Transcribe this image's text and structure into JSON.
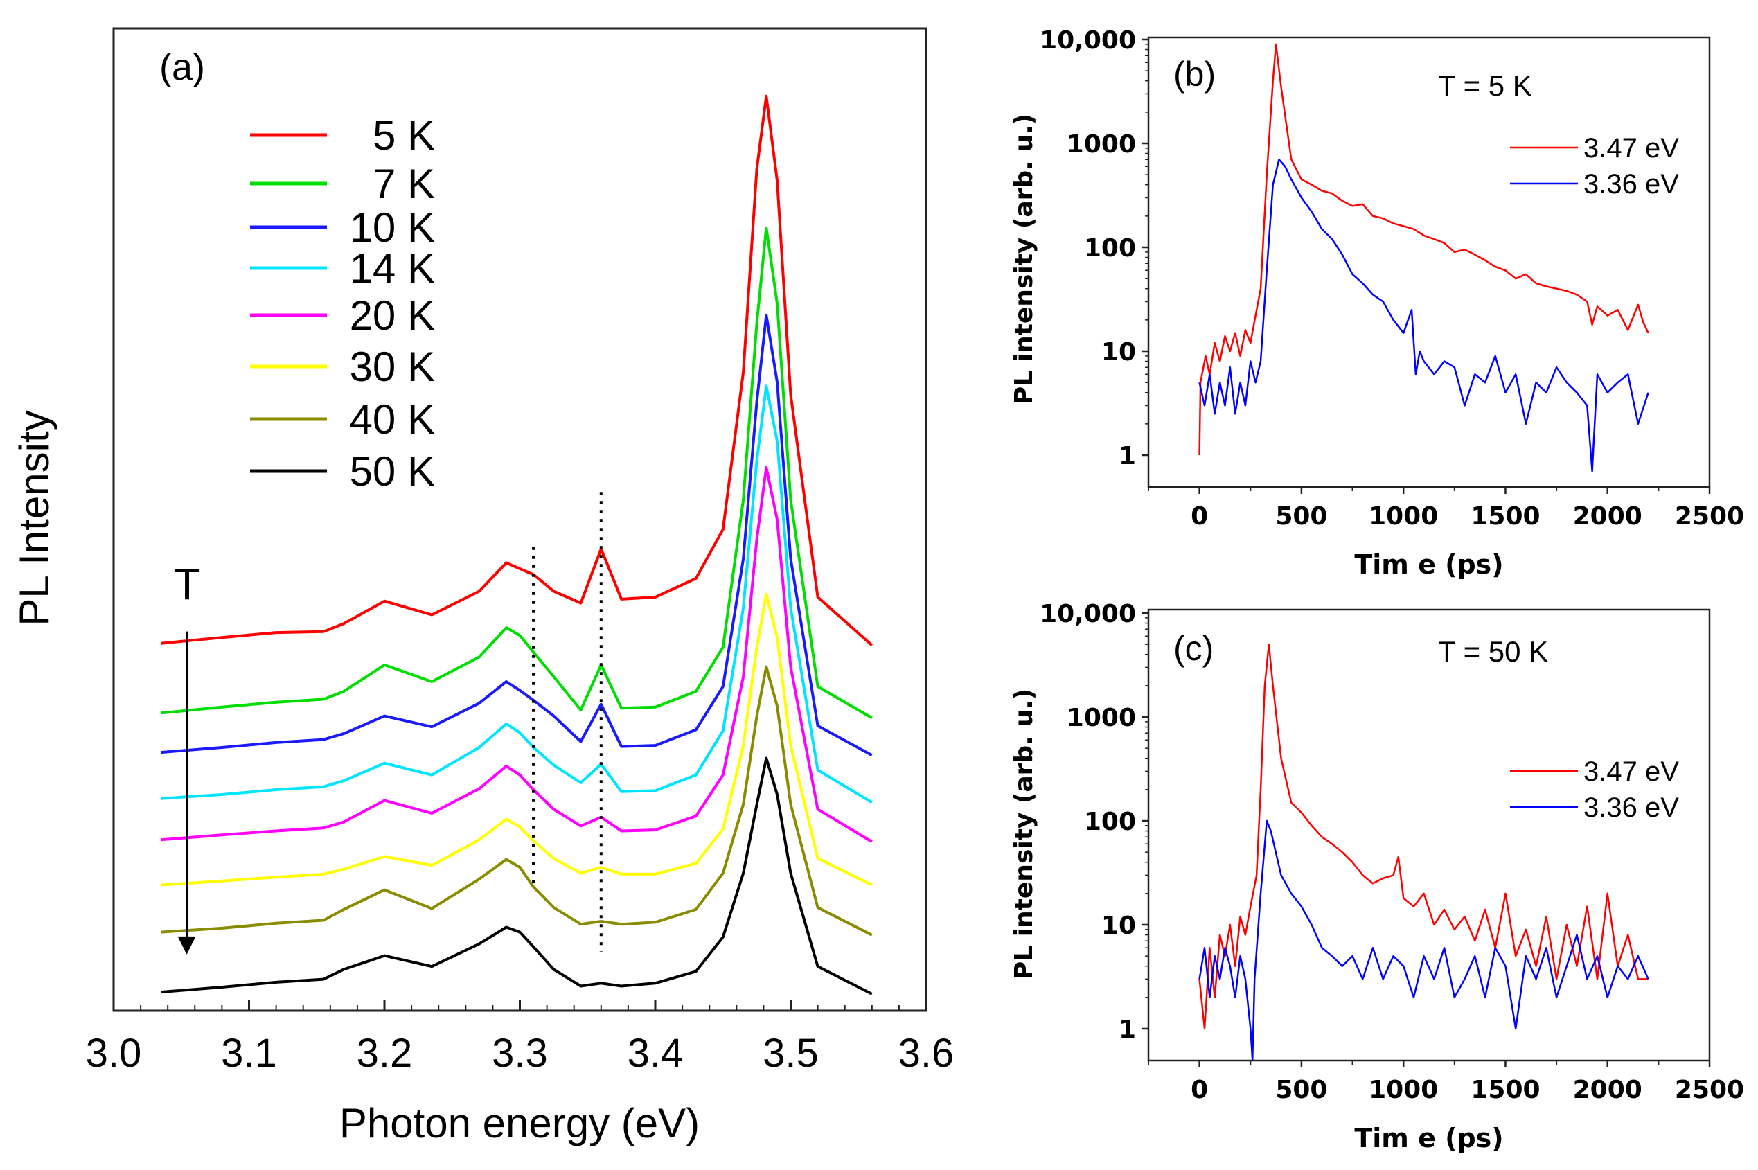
{
  "chart_data": [
    {
      "type": "line",
      "panel_label": "(a)",
      "xlabel": "Photon energy (eV)",
      "ylabel": "PL Intensity",
      "xlim": [
        3.0,
        3.6
      ],
      "ylim": [
        0,
        100
      ],
      "xticks": [
        "3.0",
        "3.1",
        "3.2",
        "3.3",
        "3.4",
        "3.5",
        "3.6"
      ],
      "y_ticks_shown": false,
      "grid": false,
      "legend_position": "top-left",
      "arrow_label": "T",
      "arrow": {
        "x": 3.054,
        "y_from": 38.6,
        "y_to": 6.0
      },
      "dotted_lines": [
        {
          "x": 3.31,
          "y_from": 47.2,
          "y_to": 12.8
        },
        {
          "x": 3.36,
          "y_from": 52.8,
          "y_to": 6.0
        }
      ],
      "x": [
        3.035,
        3.08,
        3.12,
        3.155,
        3.17,
        3.2,
        3.235,
        3.27,
        3.29,
        3.3,
        3.31,
        3.325,
        3.345,
        3.36,
        3.375,
        3.4,
        3.43,
        3.45,
        3.465,
        3.475,
        3.482,
        3.49,
        3.5,
        3.52,
        3.56
      ],
      "series": [
        {
          "name": "5 K",
          "color": "#ff0000",
          "values": [
            37.4,
            38.0,
            38.5,
            38.6,
            39.4,
            41.7,
            40.3,
            42.7,
            45.6,
            45.0,
            44.4,
            42.7,
            41.5,
            47.0,
            41.9,
            42.1,
            44.0,
            49.0,
            65.0,
            85.7,
            93.1,
            84.5,
            62.7,
            42.1,
            37.2
          ]
        },
        {
          "name": "7 K",
          "color": "#00dd00",
          "values": [
            30.3,
            30.9,
            31.4,
            31.7,
            32.5,
            35.2,
            33.5,
            36.0,
            39.0,
            38.2,
            36.5,
            34.0,
            30.6,
            35.2,
            30.8,
            30.9,
            32.5,
            37.0,
            52,
            70,
            79.7,
            72,
            52,
            33,
            29.8
          ]
        },
        {
          "name": "10 K",
          "color": "#1a1aff",
          "values": [
            26.3,
            26.8,
            27.3,
            27.6,
            28.2,
            30.0,
            28.9,
            31.3,
            33.5,
            32.6,
            31.6,
            30.0,
            27.4,
            31.2,
            26.9,
            27.0,
            28.6,
            33.0,
            46,
            62,
            70.8,
            64,
            46,
            29,
            26.0
          ]
        },
        {
          "name": "14 K",
          "color": "#00e5ff",
          "values": [
            21.6,
            22.0,
            22.5,
            22.8,
            23.4,
            25.2,
            24.0,
            26.8,
            29.2,
            28.3,
            26.8,
            25.0,
            23.2,
            25.1,
            22.3,
            22.4,
            24.0,
            28.5,
            41,
            56,
            63.6,
            58,
            41,
            24.5,
            21.2
          ]
        },
        {
          "name": "20 K",
          "color": "#ff00ff",
          "values": [
            17.4,
            17.9,
            18.3,
            18.6,
            19.2,
            21.4,
            20.1,
            22.6,
            24.9,
            24.0,
            22.5,
            20.5,
            18.8,
            19.7,
            18.3,
            18.4,
            19.8,
            24,
            34,
            48,
            55.3,
            50,
            35,
            20.5,
            17.2
          ]
        },
        {
          "name": "30 K",
          "color": "#ffff00",
          "values": [
            12.8,
            13.2,
            13.6,
            13.9,
            14.4,
            15.7,
            14.8,
            17.4,
            19.5,
            18.7,
            17.3,
            15.5,
            14.0,
            14.6,
            13.9,
            13.9,
            15.0,
            18.5,
            27,
            37,
            42.4,
            38,
            27,
            15.5,
            12.8
          ]
        },
        {
          "name": "40 K",
          "color": "#8b8b00",
          "values": [
            8.0,
            8.4,
            8.9,
            9.2,
            10.3,
            12.3,
            10.4,
            13.4,
            15.4,
            14.6,
            12.6,
            10.5,
            8.8,
            9.1,
            8.8,
            9.0,
            10.3,
            14,
            21,
            30,
            35.0,
            31,
            21,
            10.5,
            7.7
          ]
        },
        {
          "name": "50 K",
          "color": "#000000",
          "values": [
            1.9,
            2.4,
            2.9,
            3.2,
            4.2,
            5.6,
            4.5,
            6.8,
            8.5,
            8.0,
            6.5,
            4.2,
            2.5,
            2.8,
            2.5,
            2.8,
            4.0,
            7.5,
            14,
            21,
            25.7,
            22,
            14,
            4.5,
            1.7
          ]
        }
      ]
    },
    {
      "type": "line",
      "panel_label": "(b)",
      "annotation": "T = 5 K",
      "xlabel": "Tim e (ps)",
      "ylabel": "PL intensity (arb. u.)",
      "xlim": [
        -250,
        2500
      ],
      "ylim": [
        0.49,
        10000
      ],
      "yscale": "log",
      "xticks": [
        "0",
        "500",
        "1000",
        "1500",
        "2000",
        "2500"
      ],
      "yticks": [
        "1",
        "10",
        "100",
        "1000",
        "10,000"
      ],
      "grid": false,
      "legend_position": "top-right",
      "series": [
        {
          "name": "3.47 eV",
          "color": "#ff0000",
          "x": [
            0,
            5,
            30,
            50,
            75,
            100,
            125,
            150,
            175,
            200,
            225,
            250,
            275,
            300,
            330,
            360,
            375,
            400,
            450,
            500,
            550,
            600,
            650,
            700,
            750,
            800,
            850,
            900,
            950,
            1000,
            1050,
            1100,
            1150,
            1200,
            1250,
            1300,
            1350,
            1400,
            1450,
            1500,
            1550,
            1600,
            1650,
            1700,
            1750,
            1800,
            1850,
            1900,
            1925,
            1950,
            2000,
            2050,
            2100,
            2150,
            2175,
            2200
          ],
          "values": [
            1,
            5,
            9,
            6,
            12,
            8,
            14,
            10,
            15,
            9,
            16,
            12,
            22,
            40,
            500,
            4000,
            9000,
            3500,
            700,
            450,
            400,
            350,
            330,
            280,
            250,
            260,
            200,
            190,
            170,
            160,
            150,
            130,
            120,
            110,
            90,
            95,
            85,
            75,
            65,
            60,
            50,
            55,
            45,
            42,
            40,
            38,
            35,
            30,
            18,
            27,
            22,
            25,
            16,
            28,
            19,
            15
          ]
        },
        {
          "name": "3.36 eV",
          "color": "#0000ff",
          "x": [
            0,
            25,
            50,
            75,
            100,
            125,
            150,
            175,
            200,
            225,
            250,
            275,
            300,
            330,
            360,
            390,
            420,
            450,
            500,
            550,
            600,
            650,
            700,
            750,
            800,
            850,
            900,
            950,
            1000,
            1040,
            1060,
            1080,
            1100,
            1150,
            1200,
            1250,
            1300,
            1350,
            1400,
            1450,
            1500,
            1550,
            1600,
            1650,
            1700,
            1750,
            1800,
            1850,
            1900,
            1925,
            1950,
            2000,
            2050,
            2100,
            2150,
            2200
          ],
          "values": [
            5,
            3,
            6,
            2.5,
            5,
            3,
            7,
            2.5,
            5,
            3,
            8,
            5,
            8,
            60,
            400,
            700,
            600,
            450,
            300,
            220,
            150,
            120,
            85,
            55,
            45,
            35,
            30,
            20,
            15,
            25,
            6,
            10,
            8,
            6,
            8,
            7,
            3,
            6,
            5,
            9,
            4,
            6,
            2,
            5,
            4,
            7,
            5,
            4,
            3,
            0.7,
            6,
            4,
            5,
            6,
            2,
            4
          ]
        }
      ]
    },
    {
      "type": "line",
      "panel_label": "(c)",
      "annotation": "T = 50 K",
      "xlabel": "Tim e (ps)",
      "ylabel": "PL intensity (arb. u.)",
      "xlim": [
        -250,
        2500
      ],
      "ylim": [
        0.49,
        10000
      ],
      "yscale": "log",
      "xticks": [
        "0",
        "500",
        "1000",
        "1500",
        "2000",
        "2500"
      ],
      "yticks": [
        "1",
        "10",
        "100",
        "1000",
        "10,000"
      ],
      "grid": false,
      "legend_position": "top-right",
      "series": [
        {
          "name": "3.47 eV",
          "color": "#ff0000",
          "x": [
            0,
            25,
            50,
            75,
            100,
            125,
            150,
            175,
            200,
            225,
            250,
            280,
            300,
            320,
            340,
            360,
            400,
            450,
            500,
            550,
            600,
            650,
            700,
            750,
            800,
            850,
            900,
            950,
            975,
            1000,
            1050,
            1100,
            1150,
            1200,
            1250,
            1300,
            1350,
            1400,
            1450,
            1500,
            1550,
            1600,
            1650,
            1700,
            1750,
            1800,
            1850,
            1900,
            1950,
            2000,
            2050,
            2100,
            2150,
            2200
          ],
          "values": [
            3,
            1,
            6,
            2,
            8,
            5,
            10,
            4,
            12,
            8,
            15,
            30,
            200,
            2000,
            5000,
            2000,
            400,
            150,
            120,
            90,
            70,
            60,
            50,
            40,
            30,
            25,
            28,
            30,
            45,
            18,
            15,
            20,
            10,
            14,
            9,
            12,
            7,
            14,
            6,
            20,
            5,
            9,
            4,
            12,
            3,
            10,
            4,
            15,
            3,
            20,
            4,
            8,
            3,
            3
          ]
        },
        {
          "name": "3.36 eV",
          "color": "#0000ff",
          "x": [
            0,
            25,
            50,
            75,
            100,
            125,
            150,
            175,
            200,
            225,
            250,
            260,
            270,
            300,
            330,
            350,
            400,
            450,
            500,
            550,
            600,
            650,
            700,
            750,
            800,
            850,
            900,
            950,
            1000,
            1050,
            1100,
            1150,
            1200,
            1250,
            1300,
            1350,
            1400,
            1450,
            1500,
            1550,
            1600,
            1650,
            1700,
            1750,
            1800,
            1850,
            1900,
            1950,
            2000,
            2050,
            2100,
            2150,
            2200
          ],
          "values": [
            3,
            6,
            2,
            5,
            3,
            6,
            4,
            2,
            5,
            3,
            1,
            0.5,
            3,
            20,
            100,
            80,
            30,
            20,
            15,
            10,
            6,
            5,
            4,
            5,
            3,
            6,
            3,
            5,
            4,
            2,
            5,
            3,
            6,
            2,
            3,
            5,
            2,
            6,
            4,
            1,
            5,
            3,
            6,
            2,
            4,
            8,
            3,
            5,
            2,
            4,
            3,
            5,
            3
          ]
        }
      ]
    }
  ]
}
